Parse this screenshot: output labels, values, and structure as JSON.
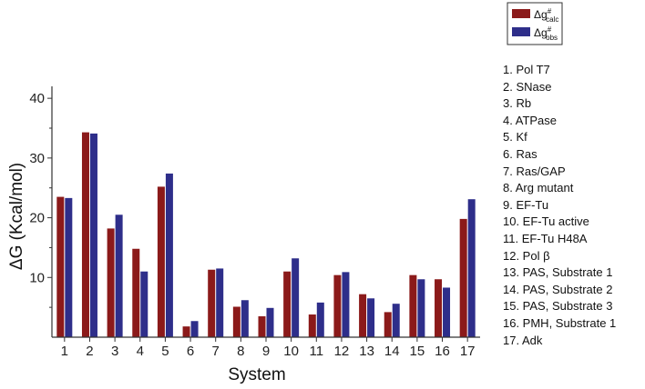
{
  "chart_data": {
    "type": "bar",
    "xlabel": "System",
    "ylabel": "ΔG (Kcal/mol)",
    "ylim": [
      0,
      42
    ],
    "yticks": [
      10,
      20,
      30,
      40
    ],
    "categories": [
      "1",
      "2",
      "3",
      "4",
      "5",
      "6",
      "7",
      "8",
      "9",
      "10",
      "11",
      "12",
      "13",
      "14",
      "15",
      "16",
      "17"
    ],
    "series": [
      {
        "name_main": "Δg",
        "name_sup": "#",
        "name_sub": "calc",
        "color": "#8B1A1A",
        "values": [
          23.5,
          34.3,
          18.2,
          14.8,
          25.2,
          1.8,
          11.3,
          5.1,
          3.5,
          11.0,
          3.8,
          10.4,
          7.2,
          4.2,
          10.4,
          9.7,
          19.8
        ]
      },
      {
        "name_main": "Δg",
        "name_sup": "#",
        "name_sub": "obs",
        "color": "#2E2E8A",
        "values": [
          23.3,
          34.1,
          20.5,
          11.0,
          27.4,
          2.7,
          11.5,
          6.2,
          4.9,
          13.2,
          5.8,
          10.9,
          6.5,
          5.6,
          9.7,
          8.3,
          23.1
        ]
      }
    ],
    "legend_position": "top-right",
    "grid": false
  },
  "system_key": [
    "1.  Pol T7",
    "2.  SNase",
    "3.  Rb",
    "4.  ATPase",
    "5.  Kf",
    "6.  Ras",
    "7.  Ras/GAP",
    "8.  Arg mutant",
    "9.  EF-Tu",
    "10.  EF-Tu active",
    "11.  EF-Tu H48A",
    "12.  Pol β",
    "13.  PAS, Substrate 1",
    "14.  PAS, Substrate 2",
    "15.  PAS, Substrate 3",
    "16.  PMH, Substrate 1",
    "17.  Adk"
  ]
}
